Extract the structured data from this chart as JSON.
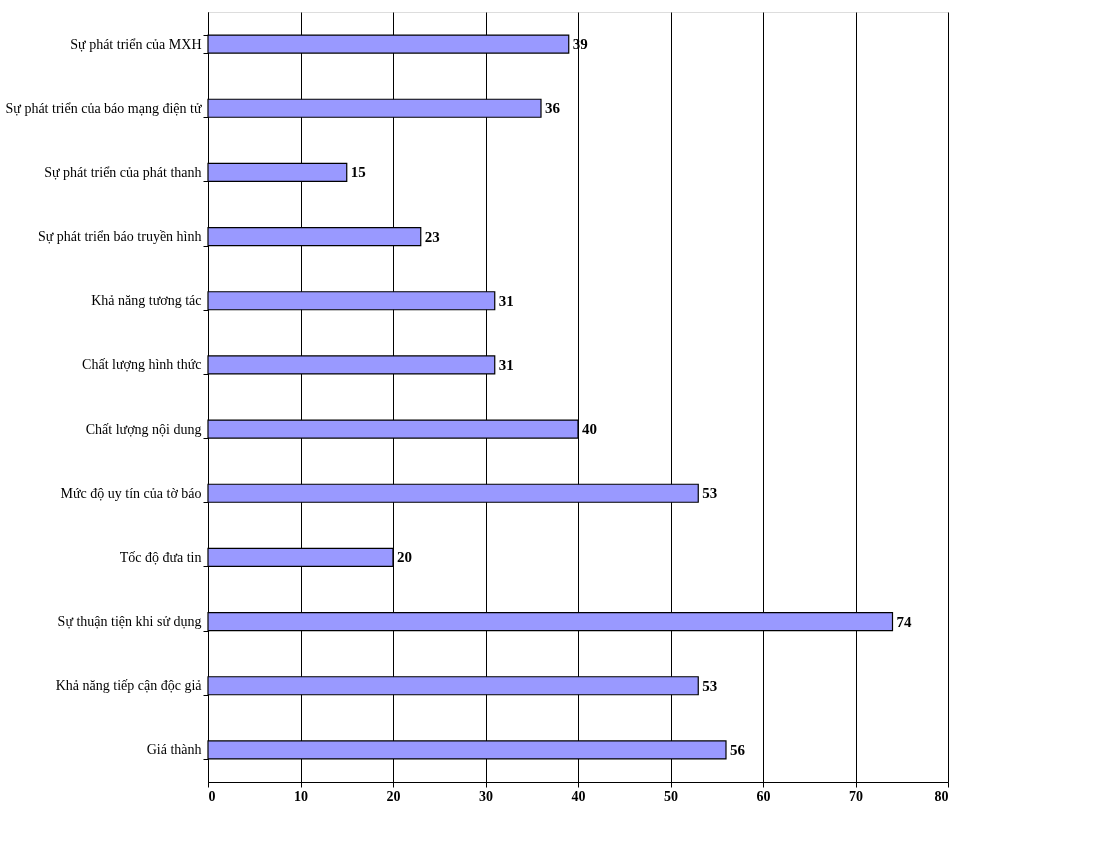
{
  "chart_data": {
    "type": "bar",
    "orientation": "horizontal",
    "categories": [
      "Sự phát triển của MXH",
      "Sự phát triển của báo mạng điện tử",
      "Sự phát triển của phát thanh",
      "Sự phát triển báo truyền hình",
      "Khả năng tương tác",
      "Chất lượng hình thức",
      "Chất lượng nội dung",
      "Mức độ uy tín của tờ báo",
      "Tốc độ đưa tin",
      "Sự thuận tiện khi sử dụng",
      "Khả năng tiếp cận độc giả",
      "Giá thành"
    ],
    "values": [
      39,
      36,
      15,
      23,
      31,
      31,
      40,
      53,
      20,
      74,
      53,
      56
    ],
    "color": "#9999ff",
    "xlim": [
      0,
      80
    ],
    "xticks": [
      0,
      10,
      20,
      30,
      40,
      50,
      60,
      70,
      80
    ],
    "grid": "x",
    "data_labels": true
  }
}
